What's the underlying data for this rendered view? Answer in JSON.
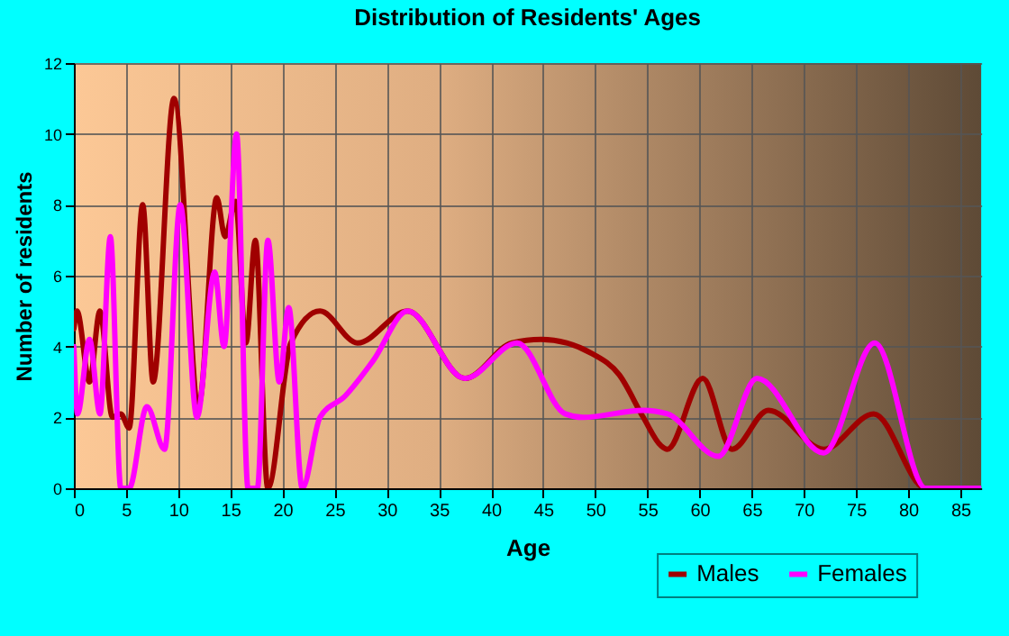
{
  "chart_data": {
    "type": "line",
    "title": "Distribution of Residents' Ages",
    "xlabel": "Age",
    "ylabel": "Number of residents",
    "xlim": [
      0,
      87
    ],
    "xticks": [
      0,
      5,
      10,
      15,
      20,
      25,
      30,
      35,
      40,
      45,
      50,
      55,
      60,
      65,
      70,
      75,
      80,
      85
    ],
    "ylim": [
      0,
      12
    ],
    "yticks": [
      0,
      2,
      4,
      6,
      8,
      10,
      12
    ],
    "grid": true,
    "legend": "bottom right",
    "line_style": "solid",
    "marker": "none",
    "series": [
      {
        "name": "Males",
        "color": "#a00000",
        "x": [
          0,
          0.3,
          1.5,
          2.5,
          3.7,
          4.5,
          5.3,
          6.6,
          7.6,
          9.6,
          12,
          13.7,
          14.5,
          15.5,
          16.5,
          17.4,
          18.6,
          20.8,
          23.6,
          27.2,
          32,
          37.5,
          42,
          44.8,
          49.7,
          52.3,
          54.6,
          56.3,
          56.9,
          60.3,
          63.1,
          66.6,
          71.9,
          76.7,
          81.7,
          87
        ],
        "values": [
          4.5,
          5,
          3,
          5,
          2,
          2.1,
          1.7,
          8,
          3,
          11,
          2.4,
          8.2,
          7.1,
          8.1,
          4.1,
          7,
          0,
          4.1,
          5,
          4.1,
          5,
          3.1,
          4.1,
          4.2,
          3.8,
          3.2,
          2,
          1.2,
          1.1,
          3.1,
          1.1,
          2.2,
          1.1,
          2.1,
          0,
          0
        ]
      },
      {
        "name": "Females",
        "color": "#ff00ff",
        "x": [
          0,
          0.35,
          1.5,
          2.5,
          3.5,
          4.5,
          5.3,
          7,
          8.7,
          10.2,
          11.8,
          13.5,
          14.4,
          15.6,
          16.7,
          17.6,
          18.6,
          19.7,
          20.6,
          21.9,
          23.6,
          26,
          28.7,
          32,
          37.5,
          42.5,
          47.1,
          48.8,
          54.6,
          56.9,
          61.8,
          65.5,
          71.9,
          76.8,
          81.7,
          87
        ],
        "values": [
          4,
          2.1,
          4.2,
          2.1,
          7.1,
          0,
          0,
          2.3,
          1.1,
          8,
          2,
          6.1,
          4,
          10,
          0,
          0,
          7,
          3,
          5.1,
          0,
          2,
          2.6,
          3.6,
          5,
          3.1,
          4.1,
          2.1,
          2,
          2.2,
          2.1,
          0.9,
          3.1,
          1,
          4.1,
          0,
          0
        ]
      }
    ]
  }
}
